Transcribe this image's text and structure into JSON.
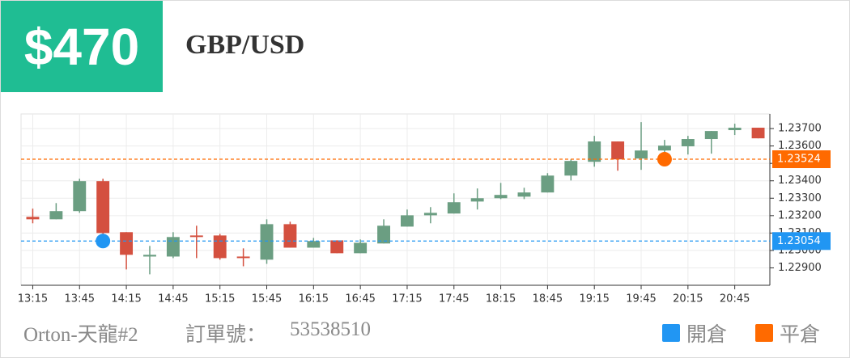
{
  "header": {
    "amount": "$470",
    "symbol": "GBP/USD"
  },
  "chart_data": {
    "type": "candlestick",
    "categories": [
      "13:15",
      null,
      "13:45",
      null,
      "14:15",
      null,
      "14:45",
      null,
      "15:15",
      null,
      "15:45",
      null,
      "16:15",
      null,
      "16:45",
      null,
      "17:15",
      null,
      "17:45",
      null,
      "18:15",
      null,
      "18:45",
      null,
      "19:15",
      null,
      "19:45",
      null,
      "20:15",
      null,
      "20:45",
      null
    ],
    "open": [
      1.23193,
      1.23179,
      1.23226,
      1.23398,
      1.23105,
      1.22965,
      1.22965,
      1.23086,
      1.23086,
      1.22965,
      1.22947,
      1.23151,
      1.23016,
      1.23058,
      1.22984,
      1.2304,
      1.23137,
      1.23202,
      1.23212,
      1.23281,
      1.233,
      1.23309,
      1.23333,
      1.2343,
      1.23509,
      1.23626,
      1.23528,
      1.23574,
      1.23598,
      1.2364,
      1.23691,
      1.23705
    ],
    "high": [
      1.2324,
      1.23272,
      1.23412,
      1.23412,
      1.23105,
      1.23026,
      1.23105,
      1.23142,
      1.23095,
      1.23012,
      1.23179,
      1.23165,
      1.23072,
      1.23058,
      1.23063,
      1.23179,
      1.23235,
      1.23249,
      1.23328,
      1.23356,
      1.23388,
      1.2336,
      1.23444,
      1.23523,
      1.23658,
      1.23626,
      1.23737,
      1.23635,
      1.23658,
      1.23686,
      1.23728,
      1.23705
    ],
    "low": [
      1.23156,
      1.23179,
      1.23216,
      1.23086,
      1.22891,
      1.22863,
      1.22956,
      1.22956,
      1.22947,
      1.22909,
      1.22923,
      1.23016,
      1.23016,
      1.22984,
      1.22984,
      1.2304,
      1.23137,
      1.23156,
      1.23212,
      1.23235,
      1.23295,
      1.23295,
      1.23333,
      1.23402,
      1.23481,
      1.23458,
      1.23463,
      1.23551,
      1.23551,
      1.23556,
      1.23663,
      1.23644
    ],
    "close": [
      1.23179,
      1.23226,
      1.23398,
      1.231,
      1.22975,
      1.22975,
      1.23077,
      1.23077,
      1.22956,
      1.22956,
      1.23151,
      1.23016,
      1.23054,
      1.22984,
      1.23044,
      1.23142,
      1.23202,
      1.23216,
      1.23277,
      1.233,
      1.23319,
      1.23333,
      1.2343,
      1.23514,
      1.23626,
      1.23523,
      1.23574,
      1.23602,
      1.2364,
      1.23686,
      1.23705,
      1.23644
    ],
    "up_color": "#6b9e82",
    "down_color": "#d4503f",
    "ylim": [
      1.228,
      1.23784
    ],
    "yticks": [
      {
        "value": 1.229,
        "label": "1.22900"
      },
      {
        "value": 1.23,
        "label": "1.23000"
      },
      {
        "value": 1.231,
        "label": "1.23100"
      },
      {
        "value": 1.232,
        "label": "1.23200"
      },
      {
        "value": 1.233,
        "label": "1.23300"
      },
      {
        "value": 1.234,
        "label": "1.23400"
      },
      {
        "value": 1.235,
        "label": "1.23500"
      },
      {
        "value": 1.236,
        "label": "1.23600"
      },
      {
        "value": 1.237,
        "label": "1.23700"
      }
    ],
    "grid": true,
    "price_lines": [
      {
        "name": "開倉",
        "value": 1.23054,
        "label": "1.23054",
        "color": "#2196f3",
        "category_index": 3
      },
      {
        "name": "平倉",
        "value": 1.23524,
        "label": "1.23524",
        "color": "#ff6a00",
        "category_index": 27
      }
    ]
  },
  "footer": {
    "account": "Orton-天龍#2",
    "order_label": "訂單號：",
    "order_number": "53538510"
  }
}
